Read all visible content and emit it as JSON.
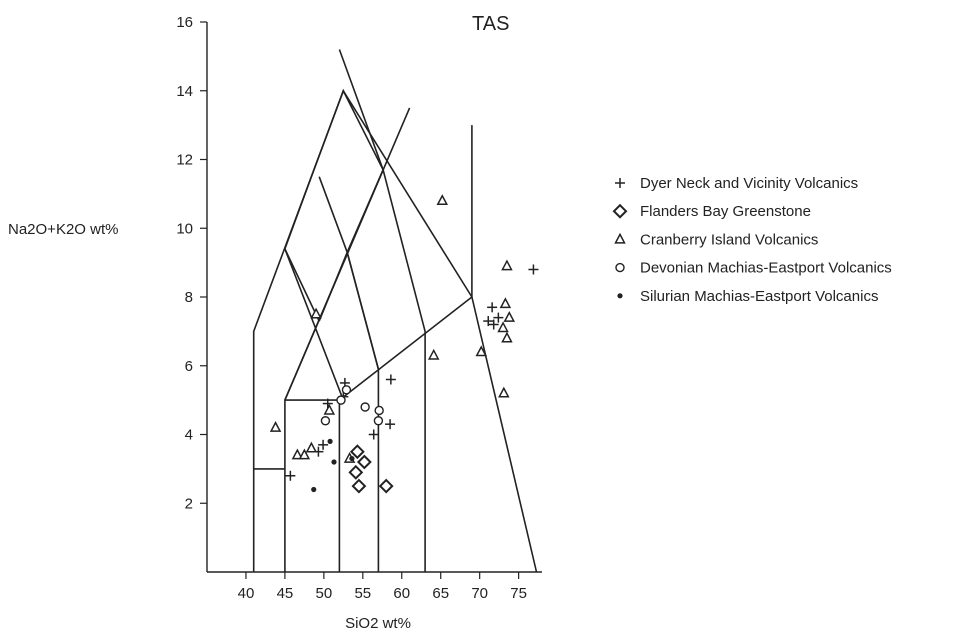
{
  "chart_data": {
    "type": "scatter",
    "title": "TAS",
    "xlabel": "SiO2 wt%",
    "ylabel": "Na2O+K2O wt%",
    "xlim": [
      35,
      78
    ],
    "ylim": [
      0,
      16
    ],
    "xticks": [
      40,
      45,
      50,
      55,
      60,
      65,
      70,
      75
    ],
    "yticks": [
      2,
      4,
      6,
      8,
      10,
      12,
      14,
      16
    ],
    "grid": false,
    "legend_position": "right",
    "field_lines": [
      [
        [
          41,
          0
        ],
        [
          41,
          7
        ],
        [
          52.5,
          14
        ],
        [
          69,
          8
        ],
        [
          77.3,
          0
        ]
      ],
      [
        [
          41,
          3
        ],
        [
          45,
          3
        ]
      ],
      [
        [
          45,
          0
        ],
        [
          45,
          5
        ],
        [
          61,
          13.5
        ]
      ],
      [
        [
          45,
          5
        ],
        [
          52,
          5
        ],
        [
          69,
          8
        ],
        [
          69,
          13
        ]
      ],
      [
        [
          45,
          9.4
        ],
        [
          52.5,
          5
        ]
      ],
      [
        [
          49.4,
          7.3
        ],
        [
          53,
          9.3
        ],
        [
          57.6,
          11.7
        ]
      ],
      [
        [
          45,
          5
        ],
        [
          57.6,
          11.7
        ]
      ],
      [
        [
          49.4,
          11.5
        ],
        [
          53,
          9.3
        ],
        [
          57,
          5.9
        ],
        [
          57,
          0
        ]
      ],
      [
        [
          49.4,
          7.3
        ],
        [
          45,
          9.4
        ],
        [
          48.4,
          11.5
        ],
        [
          52.5,
          14
        ],
        [
          57.6,
          11.7
        ],
        [
          63,
          7
        ]
      ],
      [
        [
          52,
          15.2
        ],
        [
          57.6,
          11.7
        ]
      ],
      [
        [
          52,
          0
        ],
        [
          52,
          5
        ]
      ],
      [
        [
          63,
          7
        ],
        [
          63,
          0
        ]
      ],
      [
        [
          53,
          9.3
        ],
        [
          57,
          5.9
        ]
      ]
    ],
    "series": [
      {
        "name": "Dyer Neck and Vicinity Volcanics",
        "marker": "plus",
        "points": [
          [
            45.7,
            2.8
          ],
          [
            49.9,
            3.7
          ],
          [
            49.3,
            3.5
          ],
          [
            50.5,
            4.9
          ],
          [
            52.5,
            5.1
          ],
          [
            52.7,
            5.5
          ],
          [
            58.6,
            5.6
          ],
          [
            58.5,
            4.3
          ],
          [
            56.4,
            4.0
          ],
          [
            71.6,
            7.7
          ],
          [
            71.8,
            7.2
          ],
          [
            71.1,
            7.3
          ],
          [
            72.4,
            7.4
          ],
          [
            76.9,
            8.8
          ]
        ]
      },
      {
        "name": "Flanders Bay Greenstone",
        "marker": "diamond",
        "points": [
          [
            54.3,
            3.5
          ],
          [
            54.1,
            2.9
          ],
          [
            55.2,
            3.2
          ],
          [
            54.5,
            2.5
          ],
          [
            58.0,
            2.5
          ]
        ]
      },
      {
        "name": "Cranberry Island Volcanics",
        "marker": "triangle",
        "points": [
          [
            43.8,
            4.2
          ],
          [
            46.6,
            3.4
          ],
          [
            47.5,
            3.4
          ],
          [
            48.4,
            3.6
          ],
          [
            49.0,
            7.5
          ],
          [
            50.7,
            4.7
          ],
          [
            53.3,
            3.3
          ],
          [
            64.1,
            6.3
          ],
          [
            65.2,
            10.8
          ],
          [
            70.2,
            6.4
          ],
          [
            73.1,
            5.2
          ],
          [
            73.5,
            8.9
          ],
          [
            73.3,
            7.8
          ],
          [
            73.8,
            7.4
          ],
          [
            73.0,
            7.1
          ],
          [
            73.5,
            6.8
          ]
        ]
      },
      {
        "name": "Devonian Machias-Eastport Volcanics",
        "marker": "circle",
        "points": [
          [
            52.2,
            5.0
          ],
          [
            52.9,
            5.3
          ],
          [
            50.2,
            4.4
          ],
          [
            55.3,
            4.8
          ],
          [
            57.1,
            4.7
          ],
          [
            57.0,
            4.4
          ]
        ]
      },
      {
        "name": "Silurian Machias-Eastport Volcanics",
        "marker": "dot",
        "points": [
          [
            48.7,
            2.4
          ],
          [
            50.8,
            3.8
          ],
          [
            51.3,
            3.2
          ],
          [
            53.6,
            3.3
          ]
        ]
      }
    ]
  }
}
